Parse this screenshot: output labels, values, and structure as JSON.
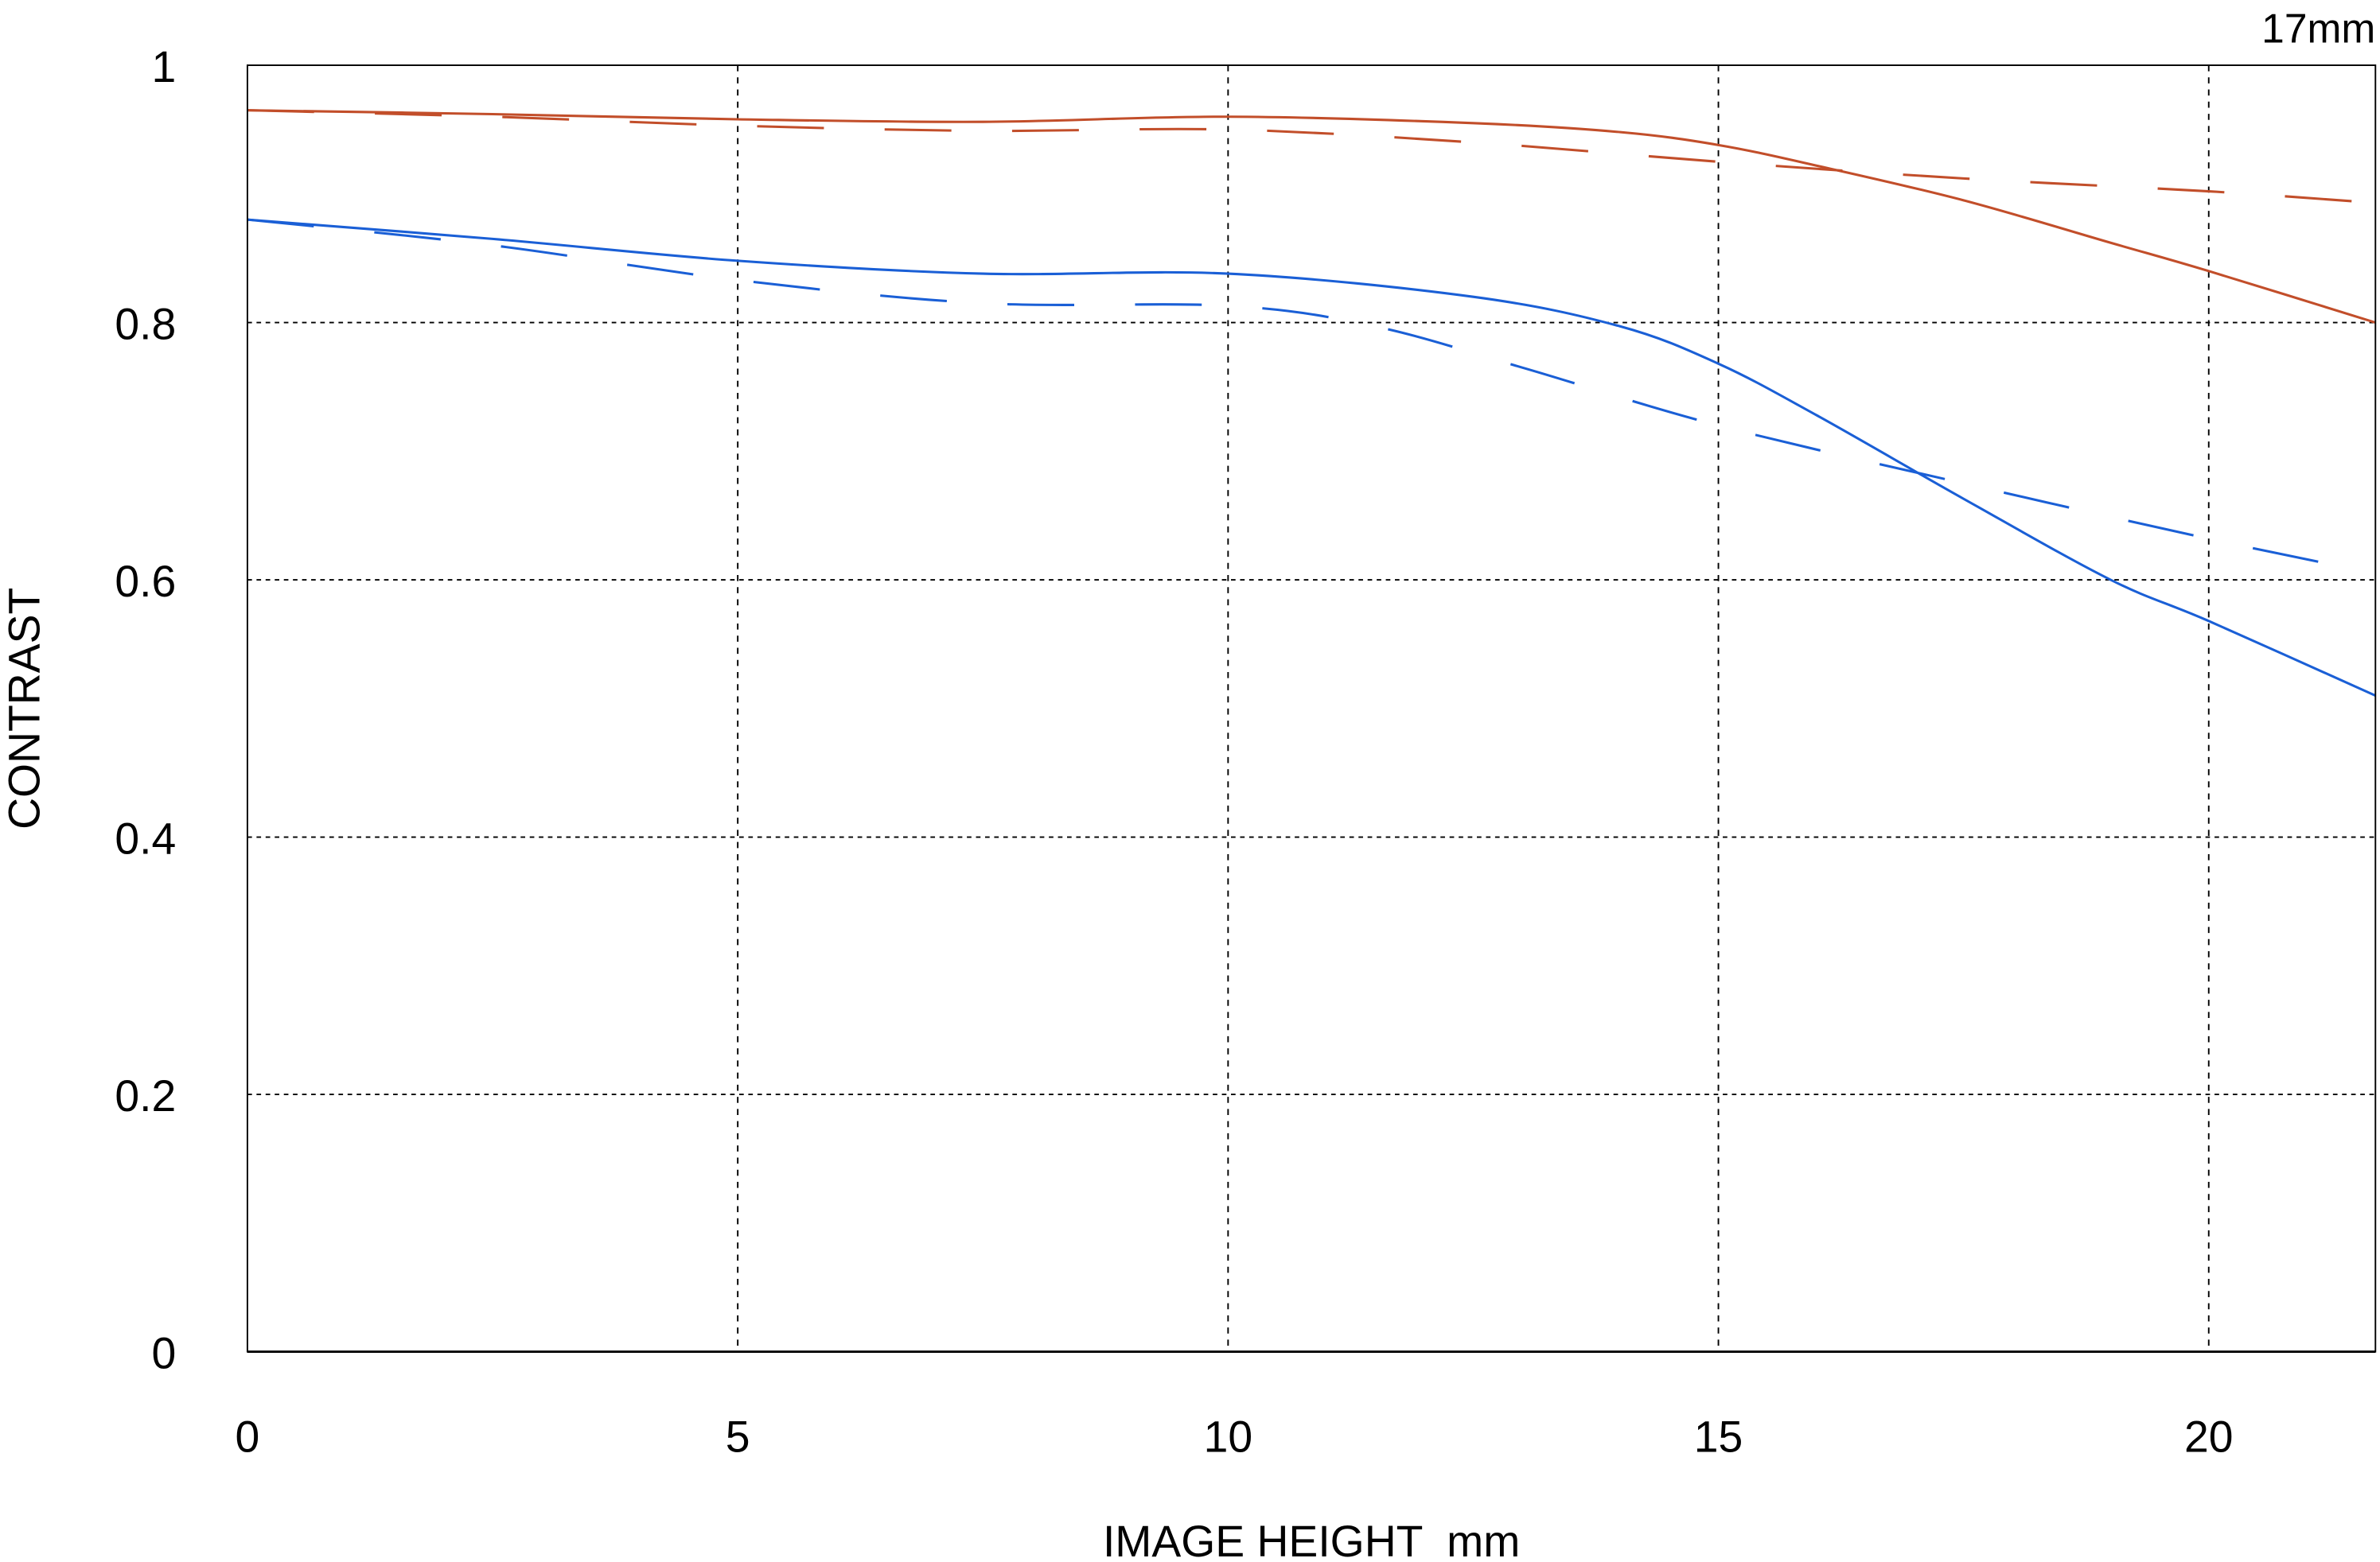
{
  "chart_data": {
    "type": "line",
    "title": "17mm",
    "xlabel": "IMAGE HEIGHT  mm",
    "ylabel": "CONTRAST",
    "xlim": [
      0,
      21.7
    ],
    "ylim": [
      0,
      1
    ],
    "x_ticks": [
      "0",
      "5",
      "10",
      "15",
      "20"
    ],
    "x_tick_values": [
      0,
      5,
      10,
      15,
      20
    ],
    "y_ticks": [
      "0",
      "0.2",
      "0.4",
      "0.6",
      "0.8",
      "1"
    ],
    "y_tick_values": [
      0,
      0.2,
      0.4,
      0.6,
      0.8,
      1
    ],
    "grid": true,
    "series": [
      {
        "name": "red-solid",
        "color": "#c24e2a",
        "dash": false,
        "x": [
          0,
          2.5,
          5,
          7.5,
          10,
          12.5,
          14,
          15,
          16,
          17.5,
          19,
          20,
          21.7
        ],
        "y": [
          0.965,
          0.962,
          0.958,
          0.956,
          0.96,
          0.955,
          0.948,
          0.938,
          0.922,
          0.895,
          0.862,
          0.84,
          0.8
        ]
      },
      {
        "name": "red-dashed",
        "color": "#c24e2a",
        "dash": true,
        "x": [
          0,
          2.5,
          5,
          7.5,
          10,
          12.5,
          15,
          17.5,
          20,
          21.7
        ],
        "y": [
          0.965,
          0.96,
          0.953,
          0.949,
          0.95,
          0.94,
          0.925,
          0.912,
          0.902,
          0.893
        ]
      },
      {
        "name": "blue-solid",
        "color": "#1a5fd6",
        "dash": false,
        "x": [
          0,
          2.5,
          5,
          7.5,
          10,
          12.5,
          14,
          15,
          16,
          17.5,
          19,
          20,
          21.7
        ],
        "y": [
          0.88,
          0.865,
          0.848,
          0.838,
          0.838,
          0.82,
          0.797,
          0.768,
          0.728,
          0.663,
          0.6,
          0.568,
          0.51
        ]
      },
      {
        "name": "blue-dashed",
        "color": "#1a5fd6",
        "dash": true,
        "x": [
          0,
          2.5,
          5,
          7.5,
          10,
          11.5,
          13,
          15,
          17.5,
          20,
          21.7
        ],
        "y": [
          0.88,
          0.86,
          0.833,
          0.815,
          0.813,
          0.797,
          0.765,
          0.72,
          0.675,
          0.632,
          0.605
        ]
      }
    ]
  }
}
